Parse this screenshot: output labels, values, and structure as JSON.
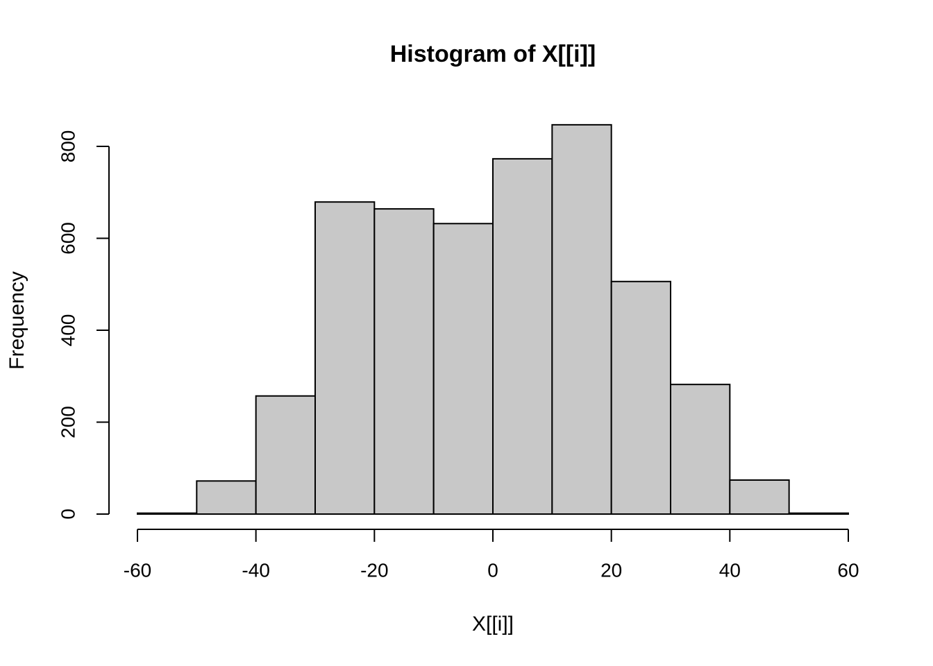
{
  "chart_data": {
    "type": "histogram",
    "title": "Histogram of X[[i]]",
    "x_label": "X[[i]]",
    "y_label": "Frequency",
    "bins": [
      -60,
      -50,
      -40,
      -30,
      -20,
      -10,
      0,
      10,
      20,
      30,
      40,
      50,
      60
    ],
    "values": [
      2,
      72,
      257,
      679,
      664,
      632,
      773,
      847,
      506,
      282,
      74,
      2
    ],
    "color": "#c8c8c8",
    "xlim": [
      -60,
      60
    ],
    "xticks": [
      -60,
      -40,
      -20,
      0,
      20,
      40,
      60
    ],
    "ylim": [
      0,
      800
    ],
    "yticks": [
      0,
      200,
      400,
      600,
      800
    ]
  }
}
